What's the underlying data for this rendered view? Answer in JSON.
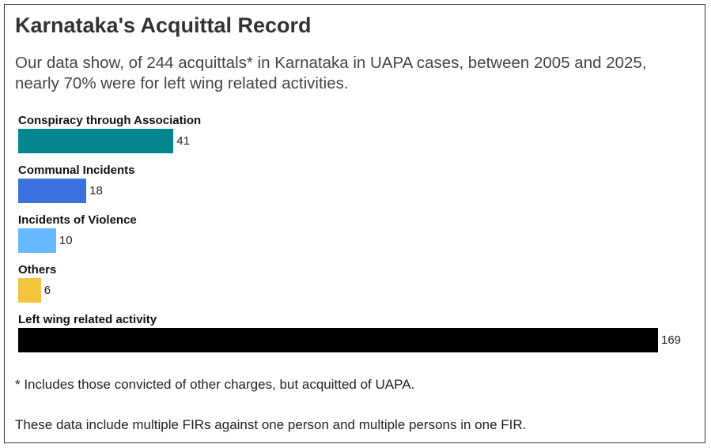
{
  "chart_data": {
    "type": "bar",
    "orientation": "horizontal",
    "title": "Karnataka's Acquittal Record",
    "subtitle": "Our data show, of 244 acquittals* in Karnataka in UAPA cases, between 2005 and 2025, nearly 70% were for left wing related activities.",
    "categories": [
      "Conspiracy through Association",
      "Communal Incidents",
      "Incidents of Violence",
      "Others",
      "Left wing related activity"
    ],
    "values": [
      41,
      18,
      10,
      6,
      169
    ],
    "colors": [
      "#06878f",
      "#3a73e0",
      "#66b8ff",
      "#f2c53d",
      "#000000"
    ],
    "xlim": [
      0,
      169
    ],
    "notes": [
      "* Includes those convicted of other charges, but acquitted of UAPA.",
      "These data include multiple FIRs against one person and multiple persons in one FIR."
    ]
  }
}
